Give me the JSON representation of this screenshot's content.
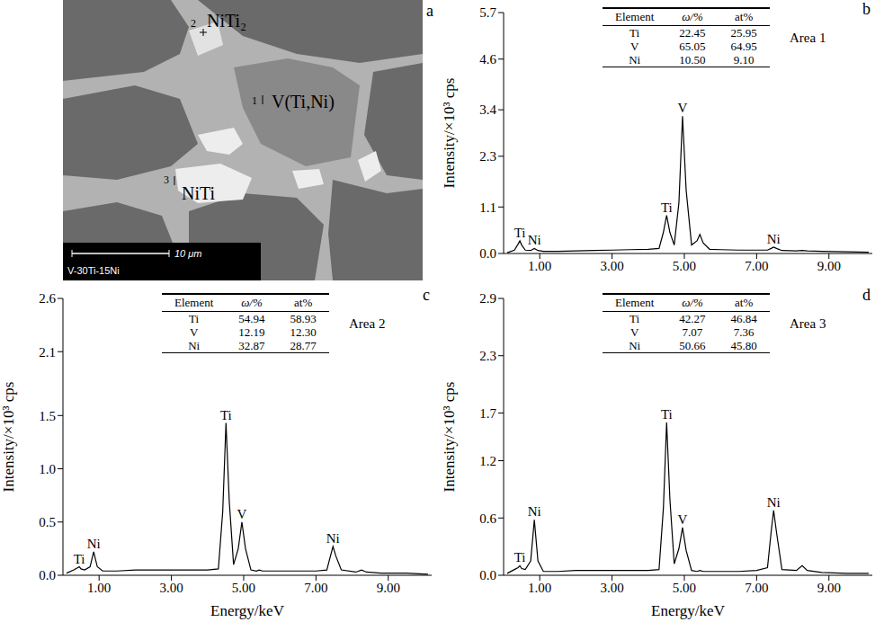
{
  "image": {
    "panel_label": "a",
    "phases": [
      {
        "marker": "1",
        "name": "V(Ti,Ni)"
      },
      {
        "marker": "2",
        "name": "NiTi₂"
      },
      {
        "marker": "3",
        "name": "NiTi"
      }
    ],
    "scale_bar": "10 μm",
    "sample": "V-30Ti-15Ni"
  },
  "chart_data": [
    {
      "panel_label": "b",
      "type": "line",
      "area": "Area 1",
      "ylabel": "Intensity/×10³ cps",
      "color": "#000000",
      "xlim": [
        0,
        10.2
      ],
      "xticks": [
        {
          "value": 1,
          "label": "1.00"
        },
        {
          "value": 3,
          "label": "3.00"
        },
        {
          "value": 5,
          "label": "5.00"
        },
        {
          "value": 7,
          "label": "7.00"
        },
        {
          "value": 9,
          "label": "9.00"
        }
      ],
      "ylim": [
        0,
        5.7
      ],
      "yticks": [
        {
          "value": 0,
          "label": "0.0"
        },
        1.1,
        2.3,
        3.4,
        4.6,
        5.7
      ],
      "x": [
        0.1,
        0.3,
        0.4,
        0.45,
        0.5,
        0.6,
        0.75,
        0.85,
        0.95,
        1.1,
        1.5,
        2,
        2.5,
        3,
        3.5,
        4,
        4.3,
        4.42,
        4.51,
        4.6,
        4.72,
        4.85,
        4.95,
        5.05,
        5.2,
        5.35,
        5.43,
        5.52,
        5.7,
        6,
        6.5,
        7,
        7.3,
        7.4,
        7.47,
        7.55,
        7.7,
        8.1,
        8.26,
        8.4,
        8.8,
        9.5,
        10.1
      ],
      "values": [
        0.02,
        0.08,
        0.22,
        0.3,
        0.2,
        0.08,
        0.07,
        0.12,
        0.07,
        0.05,
        0.05,
        0.06,
        0.07,
        0.08,
        0.09,
        0.1,
        0.12,
        0.5,
        0.9,
        0.5,
        0.2,
        1.2,
        3.25,
        1.5,
        0.2,
        0.3,
        0.45,
        0.25,
        0.1,
        0.09,
        0.08,
        0.08,
        0.08,
        0.12,
        0.15,
        0.12,
        0.07,
        0.06,
        0.07,
        0.06,
        0.05,
        0.04,
        0.03
      ],
      "peak_labels": [
        {
          "text": "Ti",
          "x": 0.45
        },
        {
          "text": "Ni",
          "x": 0.85
        },
        {
          "text": "Ti",
          "x": 4.51
        },
        {
          "text": "V",
          "x": 4.95
        },
        {
          "text": "Ni",
          "x": 7.47
        }
      ],
      "table": {
        "columns": [
          "Element",
          "ω/%",
          "at%"
        ],
        "rows": [
          [
            "Ti",
            "22.45",
            "25.95"
          ],
          [
            "V",
            "65.05",
            "64.95"
          ],
          [
            "Ni",
            "10.50",
            "9.10"
          ]
        ]
      }
    },
    {
      "panel_label": "c",
      "type": "line",
      "area": "Area 2",
      "ylabel": "Intensity/×10³ cps",
      "xlabel": "Energy/keV",
      "color": "#000000",
      "xlim": [
        0,
        10.2
      ],
      "xticks": [
        {
          "value": 1,
          "label": "1.00"
        },
        {
          "value": 3,
          "label": "3.00"
        },
        {
          "value": 5,
          "label": "5.00"
        },
        {
          "value": 7,
          "label": "7.00"
        },
        {
          "value": 9,
          "label": "9.00"
        }
      ],
      "ylim": [
        0,
        2.6
      ],
      "yticks": [
        {
          "value": 0,
          "label": "0.0"
        },
        0.5,
        {
          "value": 1,
          "label": "1.0"
        },
        1.5,
        2.1,
        2.6
      ],
      "x": [
        0.1,
        0.3,
        0.4,
        0.45,
        0.5,
        0.6,
        0.75,
        0.85,
        0.95,
        1.1,
        1.5,
        2,
        2.5,
        3,
        3.5,
        4,
        4.3,
        4.42,
        4.51,
        4.6,
        4.72,
        4.85,
        4.95,
        5.05,
        5.2,
        5.35,
        5.43,
        5.52,
        5.7,
        6,
        6.5,
        7,
        7.3,
        7.4,
        7.47,
        7.55,
        7.7,
        8.1,
        8.26,
        8.4,
        8.8,
        9.5,
        10.1
      ],
      "values": [
        0.02,
        0.05,
        0.07,
        0.08,
        0.06,
        0.05,
        0.08,
        0.22,
        0.08,
        0.04,
        0.04,
        0.05,
        0.05,
        0.05,
        0.05,
        0.05,
        0.06,
        0.6,
        1.43,
        0.7,
        0.1,
        0.25,
        0.5,
        0.25,
        0.05,
        0.04,
        0.05,
        0.04,
        0.04,
        0.04,
        0.04,
        0.04,
        0.05,
        0.18,
        0.27,
        0.18,
        0.05,
        0.03,
        0.05,
        0.03,
        0.02,
        0.02,
        0.01
      ],
      "peak_labels": [
        {
          "text": "Ti",
          "x": 0.45
        },
        {
          "text": "Ni",
          "x": 0.85
        },
        {
          "text": "Ti",
          "x": 4.51
        },
        {
          "text": "V",
          "x": 4.95
        },
        {
          "text": "Ni",
          "x": 7.47
        }
      ],
      "table": {
        "columns": [
          "Element",
          "ω/%",
          "at%"
        ],
        "rows": [
          [
            "Ti",
            "54.94",
            "58.93"
          ],
          [
            "V",
            "12.19",
            "12.30"
          ],
          [
            "Ni",
            "32.87",
            "28.77"
          ]
        ]
      }
    },
    {
      "panel_label": "d",
      "type": "line",
      "area": "Area 3",
      "ylabel": "Intensity/×10³ cps",
      "xlabel": "Energy/keV",
      "color": "#000000",
      "xlim": [
        0,
        10.2
      ],
      "xticks": [
        {
          "value": 1,
          "label": "1.00"
        },
        {
          "value": 3,
          "label": "3.00"
        },
        {
          "value": 5,
          "label": "5.00"
        },
        {
          "value": 7,
          "label": "7.00"
        },
        {
          "value": 9,
          "label": "9.00"
        }
      ],
      "ylim": [
        0,
        2.9
      ],
      "yticks": [
        {
          "value": 0,
          "label": "0.0"
        },
        0.6,
        1.2,
        1.7,
        2.3,
        2.9
      ],
      "x": [
        0.1,
        0.3,
        0.4,
        0.45,
        0.5,
        0.6,
        0.75,
        0.85,
        0.95,
        1.1,
        1.5,
        2,
        2.5,
        3,
        3.5,
        4,
        4.3,
        4.42,
        4.51,
        4.6,
        4.72,
        4.85,
        4.95,
        5.05,
        5.2,
        5.35,
        5.43,
        5.52,
        5.7,
        6,
        6.5,
        7,
        7.3,
        7.4,
        7.47,
        7.55,
        7.7,
        8.1,
        8.26,
        8.4,
        8.8,
        9.5,
        10.1
      ],
      "values": [
        0.02,
        0.06,
        0.08,
        0.1,
        0.07,
        0.06,
        0.15,
        0.58,
        0.15,
        0.04,
        0.04,
        0.05,
        0.05,
        0.05,
        0.05,
        0.05,
        0.06,
        0.7,
        1.6,
        0.8,
        0.12,
        0.28,
        0.5,
        0.26,
        0.05,
        0.04,
        0.05,
        0.04,
        0.04,
        0.04,
        0.04,
        0.05,
        0.08,
        0.45,
        0.68,
        0.45,
        0.06,
        0.05,
        0.1,
        0.05,
        0.03,
        0.02,
        0.02
      ],
      "peak_labels": [
        {
          "text": "Ti",
          "x": 0.45
        },
        {
          "text": "Ni",
          "x": 0.85
        },
        {
          "text": "Ti",
          "x": 4.51
        },
        {
          "text": "V",
          "x": 4.95
        },
        {
          "text": "Ni",
          "x": 7.47
        }
      ],
      "table": {
        "columns": [
          "Element",
          "ω/%",
          "at%"
        ],
        "rows": [
          [
            "Ti",
            "42.27",
            "46.84"
          ],
          [
            "V",
            "7.07",
            "7.36"
          ],
          [
            "Ni",
            "50.66",
            "45.80"
          ]
        ]
      }
    }
  ]
}
